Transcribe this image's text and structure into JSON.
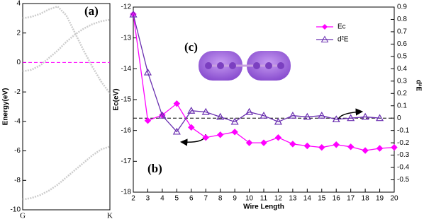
{
  "chart_data": [
    {
      "type": "line",
      "annotation": "(a)",
      "ylabel": "Energy(eV)",
      "xlim": [
        0,
        1
      ],
      "xticks": [
        {
          "value": 0,
          "label": "G"
        },
        {
          "value": 1,
          "label": "K"
        }
      ],
      "ylim": [
        -10,
        4
      ],
      "yticks": [
        -10,
        -8,
        -6,
        -4,
        -2,
        0,
        2,
        4
      ],
      "reference_line": {
        "value": 0,
        "color": "#ff00ff"
      },
      "x": [
        0,
        0.1,
        0.2,
        0.3,
        0.4,
        0.5,
        0.6,
        0.7,
        0.8,
        0.9,
        1
      ],
      "series": [
        {
          "color": "#cccccc",
          "values": [
            3.0,
            3.1,
            3.3,
            3.6,
            3.8,
            3.2,
            2.0,
            0.8,
            -0.3,
            -1.3,
            -2.1
          ]
        },
        {
          "color": "#cccccc",
          "values": [
            -0.6,
            -0.5,
            -0.2,
            0.3,
            0.8,
            1.4,
            1.9,
            2.3,
            2.6,
            2.8,
            2.9
          ]
        },
        {
          "color": "#cccccc",
          "values": [
            -9.3,
            -9.2,
            -9.0,
            -8.7,
            -8.3,
            -7.8,
            -7.3,
            -6.8,
            -6.3,
            -5.9,
            -5.7
          ]
        }
      ]
    },
    {
      "type": "line",
      "annotation": "(b)",
      "inset_label": "(c)",
      "xlabel": "Wire Length",
      "ylabel": "Ec(eV)",
      "y2label": "d²E",
      "xlim": [
        2,
        20
      ],
      "xticks": [
        2,
        3,
        4,
        5,
        6,
        7,
        8,
        9,
        10,
        11,
        12,
        13,
        14,
        15,
        16,
        17,
        18,
        19,
        20
      ],
      "ylim": [
        -18,
        -12
      ],
      "yticks": [
        -18,
        -17,
        -16,
        -15,
        -14,
        -13,
        -12
      ],
      "y2lim": [
        -0.6,
        0.9
      ],
      "y2ticks": [
        -0.5,
        -0.4,
        -0.3,
        -0.2,
        -0.1,
        0,
        0.1,
        0.2,
        0.3,
        0.4,
        0.5,
        0.6,
        0.7,
        0.8,
        0.9
      ],
      "reference_line": {
        "value": 0,
        "axis": "y2",
        "color": "#000000"
      },
      "x": [
        2,
        3,
        4,
        5,
        6,
        7,
        8,
        9,
        10,
        11,
        12,
        13,
        14,
        15,
        16,
        17,
        18,
        19,
        20
      ],
      "series": [
        {
          "name": "Ec",
          "color": "#ff00ff",
          "marker": "diamond",
          "values": [
            -12.23,
            -15.68,
            -15.5,
            -15.13,
            -15.9,
            -16.23,
            -16.14,
            -16.05,
            -16.4,
            -16.4,
            -16.23,
            -16.44,
            -16.5,
            -16.55,
            -16.46,
            -16.53,
            -16.65,
            -16.58,
            -16.55
          ]
        },
        {
          "name": "d²E",
          "color": "#6a2fb0",
          "marker": "triangle",
          "axis": "y2",
          "values": [
            0.84,
            0.37,
            0.02,
            -0.11,
            0.06,
            0.05,
            0.01,
            -0.03,
            0.05,
            0.02,
            -0.03,
            0.02,
            0.01,
            0.02,
            -0.01,
            0,
            0.01,
            0,
            null
          ]
        }
      ]
    }
  ]
}
